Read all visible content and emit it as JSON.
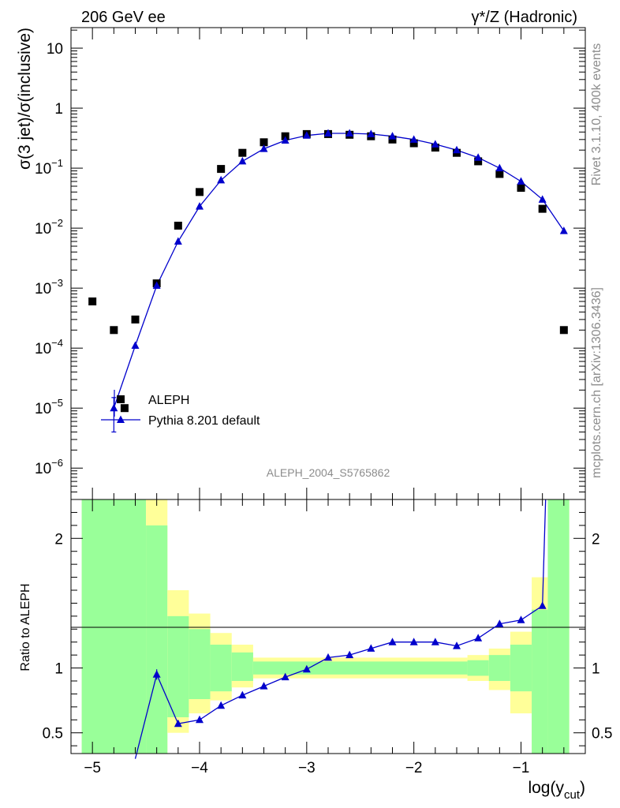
{
  "header": {
    "left": "206 GeV ee",
    "right": "γ*/Z (Hadronic)"
  },
  "side_labels": {
    "upper": "Rivet 3.1.10,  400k events",
    "lower": "mcplots.cern.ch [arXiv:1306.3436]"
  },
  "analysis_label": "ALEPH_2004_S5765862",
  "colors": {
    "mc_line": "#0000cc",
    "data_marker": "#000000",
    "band_inner": "#99ff99",
    "band_outer": "#ffff99"
  },
  "chart_data": [
    {
      "type": "scatter",
      "panel": "main",
      "ylabel": "σ(3 jet)/σ(inclusive)",
      "yscale": "log",
      "ylim": [
        3e-07,
        22
      ],
      "xlim": [
        -5.2,
        -0.4
      ],
      "yticks": [
        1e-06,
        1e-05,
        0.0001,
        0.001,
        0.01,
        0.1,
        1,
        10
      ],
      "ytick_labels": [
        {
          "base": "10",
          "exp": "−6"
        },
        {
          "base": "10",
          "exp": "−5"
        },
        {
          "base": "10",
          "exp": "−4"
        },
        {
          "base": "10",
          "exp": "−3"
        },
        {
          "base": "10",
          "exp": "−2"
        },
        {
          "base": "10",
          "exp": "−1"
        },
        {
          "base": "1",
          "exp": ""
        },
        {
          "base": "10",
          "exp": ""
        }
      ],
      "legend": {
        "placement": "bottom-left",
        "entries": [
          "ALEPH",
          "Pythia 8.201 default"
        ]
      },
      "series": [
        {
          "name": "ALEPH",
          "marker": "square",
          "x": [
            -5.0,
            -4.8,
            -4.7,
            -4.6,
            -4.4,
            -4.2,
            -4.0,
            -3.8,
            -3.6,
            -3.4,
            -3.2,
            -3.0,
            -2.8,
            -2.6,
            -2.4,
            -2.2,
            -2.0,
            -1.8,
            -1.6,
            -1.4,
            -1.2,
            -1.0,
            -0.8,
            -0.6
          ],
          "y": [
            0.0006,
            0.0002,
            1e-05,
            0.0003,
            0.0012,
            0.011,
            0.04,
            0.097,
            0.18,
            0.27,
            0.34,
            0.37,
            0.37,
            0.36,
            0.34,
            0.3,
            0.26,
            0.22,
            0.18,
            0.13,
            0.08,
            0.047,
            0.021,
            0.0002
          ]
        },
        {
          "name": "Pythia 8.201 default",
          "marker": "triangle",
          "x": [
            -4.8,
            -4.6,
            -4.4,
            -4.2,
            -4.0,
            -3.8,
            -3.6,
            -3.4,
            -3.2,
            -3.0,
            -2.8,
            -2.6,
            -2.4,
            -2.2,
            -2.0,
            -1.8,
            -1.6,
            -1.4,
            -1.2,
            -1.0,
            -0.8,
            -0.6
          ],
          "y": [
            1e-05,
            0.00011,
            0.0011,
            0.006,
            0.023,
            0.063,
            0.13,
            0.21,
            0.29,
            0.35,
            0.38,
            0.38,
            0.37,
            0.34,
            0.3,
            0.25,
            0.2,
            0.15,
            0.1,
            0.06,
            0.03,
            0.009
          ],
          "yerr_low": [
            6e-06
          ],
          "yerr_high": [
            5e-06
          ]
        }
      ]
    },
    {
      "type": "line",
      "panel": "ratio",
      "ylabel": "Ratio to ALEPH",
      "xlabel": "log(y_cut)",
      "ylim": [
        0.34,
        2.3
      ],
      "xlim": [
        -5.2,
        -0.4
      ],
      "yticks": [
        0.5,
        1,
        2
      ],
      "ytick_labels": [
        "0.5",
        "1",
        "2"
      ],
      "xticks": [
        -5,
        -4,
        -3,
        -2,
        -1
      ],
      "xtick_labels": [
        "−5",
        "−4",
        "−3",
        "−2",
        "−1"
      ],
      "reference_line": 1,
      "bands": [
        {
          "lo": -5.1,
          "hi": -4.5,
          "outer": [
            0.34,
            2.3
          ],
          "inner": [
            0.34,
            2.3
          ]
        },
        {
          "lo": -4.5,
          "hi": -4.3,
          "outer": [
            0.34,
            2.3
          ],
          "inner": [
            0.34,
            2.1
          ]
        },
        {
          "lo": -4.3,
          "hi": -4.1,
          "outer": [
            0.5,
            1.6
          ],
          "inner": [
            0.62,
            1.4
          ]
        },
        {
          "lo": -4.1,
          "hi": -3.9,
          "outer": [
            0.65,
            1.42
          ],
          "inner": [
            0.76,
            1.3
          ]
        },
        {
          "lo": -3.9,
          "hi": -3.7,
          "outer": [
            0.75,
            1.27
          ],
          "inner": [
            0.82,
            1.18
          ]
        },
        {
          "lo": -3.7,
          "hi": -3.5,
          "outer": [
            0.85,
            1.18
          ],
          "inner": [
            0.9,
            1.12
          ]
        },
        {
          "lo": -3.5,
          "hi": -1.5,
          "outer": [
            0.92,
            1.08
          ],
          "inner": [
            0.95,
            1.05
          ]
        },
        {
          "lo": -1.5,
          "hi": -1.3,
          "outer": [
            0.9,
            1.1
          ],
          "inner": [
            0.94,
            1.06
          ]
        },
        {
          "lo": -1.3,
          "hi": -1.1,
          "outer": [
            0.83,
            1.15
          ],
          "inner": [
            0.9,
            1.1
          ]
        },
        {
          "lo": -1.1,
          "hi": -0.9,
          "outer": [
            0.65,
            1.28
          ],
          "inner": [
            0.82,
            1.18
          ]
        },
        {
          "lo": -0.9,
          "hi": -0.75,
          "outer": [
            0.34,
            1.7
          ],
          "inner": [
            0.34,
            1.45
          ]
        },
        {
          "lo": -0.75,
          "hi": -0.55,
          "outer": [
            0.34,
            2.3
          ],
          "inner": [
            0.34,
            2.3
          ]
        }
      ],
      "series": [
        {
          "name": "Pythia 8.201 default",
          "x": [
            -4.6,
            -4.4,
            -4.2,
            -4.0,
            -3.8,
            -3.6,
            -3.4,
            -3.2,
            -3.0,
            -2.8,
            -2.6,
            -2.4,
            -2.2,
            -2.0,
            -1.8,
            -1.6,
            -1.4,
            -1.2,
            -1.0,
            -0.8,
            -0.77
          ],
          "y": [
            0.3,
            0.95,
            0.57,
            0.6,
            0.71,
            0.79,
            0.86,
            0.93,
            0.99,
            1.08,
            1.1,
            1.15,
            1.2,
            1.2,
            1.2,
            1.17,
            1.23,
            1.34,
            1.37,
            1.48,
            2.3
          ],
          "markers": [
            false,
            true,
            true,
            true,
            true,
            true,
            true,
            true,
            true,
            true,
            true,
            true,
            true,
            true,
            true,
            true,
            true,
            true,
            true,
            true,
            false
          ]
        }
      ]
    }
  ]
}
